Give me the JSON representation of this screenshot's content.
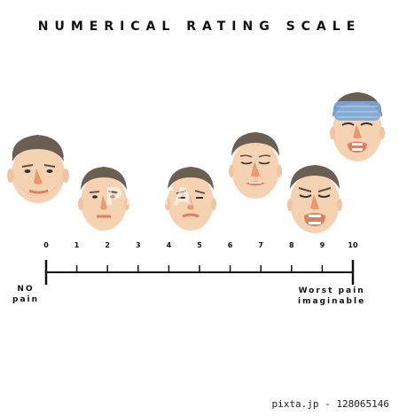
{
  "title": "NUMERICAL RATING SCALE",
  "scale": {
    "ticks": [
      "0",
      "1",
      "2",
      "3",
      "4",
      "5",
      "6",
      "7",
      "8",
      "9",
      "10"
    ],
    "min_label_line1": "NO",
    "min_label_line2": "pain",
    "max_label_line1": "Worst pain",
    "max_label_line2": "imaginable"
  },
  "faces": [
    {
      "name": "face-no-pain"
    },
    {
      "name": "face-mild-pain"
    },
    {
      "name": "face-moderate-pain"
    },
    {
      "name": "face-severe-pain"
    },
    {
      "name": "face-very-severe-pain"
    },
    {
      "name": "face-worst-pain"
    }
  ],
  "colors": {
    "skin": "#f5d3b2",
    "hair": "#6b5f52",
    "nose": "#e99a6a",
    "mouth": "#e07f5f",
    "ice": "#7aa6d6",
    "line": "#111111"
  },
  "watermark": "PIXTA",
  "credit": "pixta.jp - 128065146"
}
